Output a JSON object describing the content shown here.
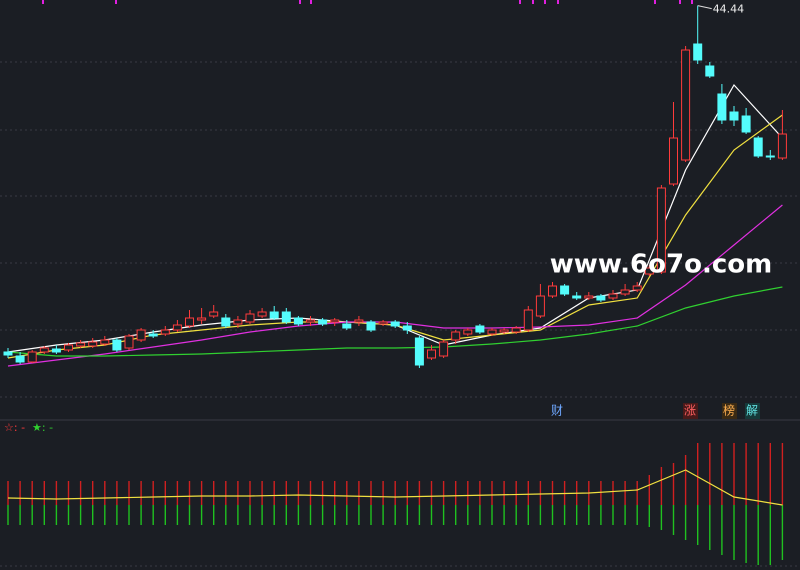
{
  "chart_data": [
    {
      "type": "candlestick",
      "annotations": {
        "watermark": "www.6o7o.com",
        "markers": [
          "财",
          "涨",
          "榜",
          "解"
        ]
      },
      "up_color": "#ff3b3b",
      "down_color": "#54fcfc",
      "ylim": [
        5,
        45
      ],
      "open": [
        9.8,
        9.4,
        8.8,
        9.8,
        10.1,
        10.0,
        10.4,
        10.4,
        10.6,
        11.0,
        10.2,
        11.0,
        11.6,
        11.6,
        12.0,
        12.4,
        13.0,
        13.4,
        13.2,
        12.6,
        12.8,
        13.4,
        13.8,
        13.8,
        13.2,
        12.8,
        13.0,
        12.8,
        12.6,
        12.8,
        12.8,
        12.6,
        12.8,
        12.4,
        11.2,
        9.2,
        9.4,
        11.0,
        11.6,
        12.4,
        11.6,
        11.8,
        11.8,
        12.0,
        13.4,
        15.4,
        16.4,
        15.4,
        15.2,
        15.4,
        15.2,
        15.6,
        16.0,
        17.6,
        17.8,
        26.6,
        29.0,
        40.6,
        38.4,
        35.6,
        33.8,
        33.4,
        31.2,
        29.4,
        29.2
      ],
      "high": [
        10.2,
        9.8,
        10.0,
        10.4,
        10.5,
        10.7,
        11.0,
        11.2,
        11.4,
        11.2,
        11.6,
        12.2,
        12.0,
        12.4,
        13.0,
        14.0,
        14.2,
        14.5,
        13.6,
        13.4,
        14.0,
        14.2,
        14.4,
        14.2,
        13.4,
        13.4,
        13.2,
        13.2,
        13.0,
        13.4,
        13.0,
        13.0,
        13.0,
        12.8,
        11.4,
        10.5,
        11.0,
        12.0,
        12.2,
        12.6,
        12.2,
        12.2,
        12.4,
        14.4,
        16.6,
        16.8,
        16.6,
        15.8,
        15.8,
        15.6,
        16.0,
        16.6,
        16.8,
        18.5,
        26.5,
        34.8,
        40.4,
        44.44,
        38.8,
        36.6,
        34.4,
        34.2,
        31.4,
        30.0,
        34.0
      ],
      "low": [
        9.2,
        8.6,
        8.7,
        9.6,
        9.6,
        9.8,
        10.2,
        10.2,
        10.4,
        9.8,
        10.0,
        10.8,
        11.2,
        11.4,
        11.8,
        12.2,
        12.6,
        13.2,
        12.2,
        12.2,
        12.6,
        13.2,
        13.0,
        12.6,
        12.4,
        12.4,
        12.4,
        12.4,
        12.0,
        12.4,
        11.8,
        12.4,
        12.2,
        11.6,
        8.2,
        9.0,
        9.2,
        10.6,
        11.4,
        11.6,
        11.4,
        11.6,
        11.6,
        11.8,
        13.2,
        15.2,
        15.4,
        15.0,
        15.0,
        14.8,
        15.0,
        15.4,
        15.8,
        17.4,
        17.6,
        26.4,
        28.8,
        38.6,
        37.2,
        32.6,
        32.4,
        31.6,
        29.2,
        29.0,
        29.0
      ],
      "close": [
        9.5,
        8.8,
        9.8,
        10.2,
        9.8,
        10.5,
        10.7,
        10.8,
        11.0,
        10.0,
        11.4,
        12.0,
        11.4,
        12.0,
        12.5,
        13.2,
        13.2,
        13.8,
        12.4,
        13.0,
        13.6,
        13.8,
        13.2,
        12.8,
        12.6,
        13.0,
        12.6,
        13.0,
        12.2,
        13.0,
        12.0,
        12.8,
        12.4,
        12.0,
        8.5,
        10.0,
        10.8,
        11.8,
        12.0,
        11.8,
        12.0,
        12.0,
        12.2,
        14.0,
        15.4,
        16.4,
        15.6,
        15.2,
        15.4,
        15.0,
        15.6,
        16.0,
        16.4,
        18.2,
        26.2,
        31.2,
        40.0,
        39.0,
        37.4,
        33.0,
        33.0,
        31.8,
        29.4,
        29.3,
        31.6
      ],
      "series": [
        {
          "color": "#ffffff",
          "x": [
            0,
            4,
            8,
            12,
            16,
            20,
            24,
            28,
            32,
            36,
            40,
            44,
            48,
            52,
            56,
            60,
            64
          ],
          "values": [
            9.8,
            10.5,
            11.0,
            11.8,
            12.5,
            13.0,
            13.2,
            12.8,
            12.5,
            10.5,
            11.5,
            12.2,
            15.2,
            16.0,
            28.0,
            36.5,
            31.2
          ]
        },
        {
          "color": "#f0e040",
          "x": [
            0,
            4,
            8,
            12,
            16,
            20,
            24,
            28,
            32,
            36,
            40,
            44,
            48,
            52,
            56,
            60,
            64
          ],
          "values": [
            9.2,
            10.0,
            10.5,
            11.5,
            12.0,
            12.5,
            12.8,
            12.8,
            12.5,
            11.0,
            11.5,
            12.0,
            14.5,
            15.2,
            23.5,
            30.0,
            33.5
          ]
        },
        {
          "color": "#e030e0",
          "x": [
            0,
            4,
            8,
            12,
            16,
            20,
            24,
            28,
            32,
            36,
            40,
            44,
            48,
            52,
            56,
            60,
            64
          ],
          "values": [
            8.4,
            9.0,
            9.6,
            10.3,
            11.0,
            11.8,
            12.4,
            12.8,
            12.8,
            12.2,
            12.2,
            12.3,
            12.5,
            13.2,
            16.5,
            20.5,
            24.5
          ]
        },
        {
          "color": "#30d030",
          "x": [
            0,
            4,
            8,
            12,
            16,
            20,
            24,
            28,
            32,
            36,
            40,
            44,
            48,
            52,
            56,
            60,
            64
          ],
          "values": [
            9.8,
            9.4,
            9.4,
            9.5,
            9.6,
            9.8,
            10.0,
            10.2,
            10.2,
            10.3,
            10.6,
            11.0,
            11.6,
            12.4,
            14.2,
            15.4,
            16.3
          ]
        }
      ]
    },
    {
      "type": "indicator",
      "legend": [
        {
          "text": "☆: -",
          "color": "#ff3b3b"
        },
        {
          "text": "★: -",
          "color": "#30d030"
        }
      ],
      "ylim": [
        -65,
        65
      ],
      "up": [
        24,
        24,
        24,
        24,
        24,
        24,
        24,
        24,
        24,
        24,
        24,
        24,
        24,
        24,
        24,
        24,
        24,
        24,
        24,
        24,
        24,
        24,
        24,
        24,
        24,
        24,
        24,
        24,
        24,
        24,
        24,
        24,
        24,
        24,
        24,
        24,
        24,
        24,
        24,
        24,
        24,
        24,
        24,
        24,
        24,
        24,
        24,
        24,
        24,
        24,
        24,
        24,
        24,
        30,
        38,
        42,
        50,
        62,
        62,
        62,
        62,
        62,
        62,
        62,
        62
      ],
      "down": [
        -20,
        -20,
        -20,
        -20,
        -20,
        -20,
        -20,
        -20,
        -20,
        -20,
        -20,
        -20,
        -20,
        -20,
        -20,
        -20,
        -20,
        -20,
        -20,
        -20,
        -20,
        -20,
        -20,
        -20,
        -20,
        -20,
        -20,
        -20,
        -20,
        -20,
        -20,
        -20,
        -20,
        -20,
        -20,
        -20,
        -20,
        -20,
        -20,
        -20,
        -20,
        -20,
        -20,
        -20,
        -20,
        -20,
        -20,
        -20,
        -20,
        -20,
        -20,
        -20,
        -20,
        -22,
        -25,
        -30,
        -35,
        -40,
        -45,
        -50,
        -55,
        -58,
        -60,
        -60,
        -55
      ],
      "up_color": "#d02020",
      "down_color": "#20c020",
      "series": [
        {
          "color": "#f0e040",
          "x": [
            0,
            4,
            8,
            12,
            16,
            20,
            24,
            28,
            32,
            36,
            40,
            44,
            48,
            52,
            56,
            60,
            64
          ],
          "values": [
            7,
            6,
            7,
            8,
            9,
            9,
            10,
            9,
            8,
            9,
            10,
            11,
            12,
            15,
            35,
            8,
            0
          ]
        }
      ]
    }
  ]
}
